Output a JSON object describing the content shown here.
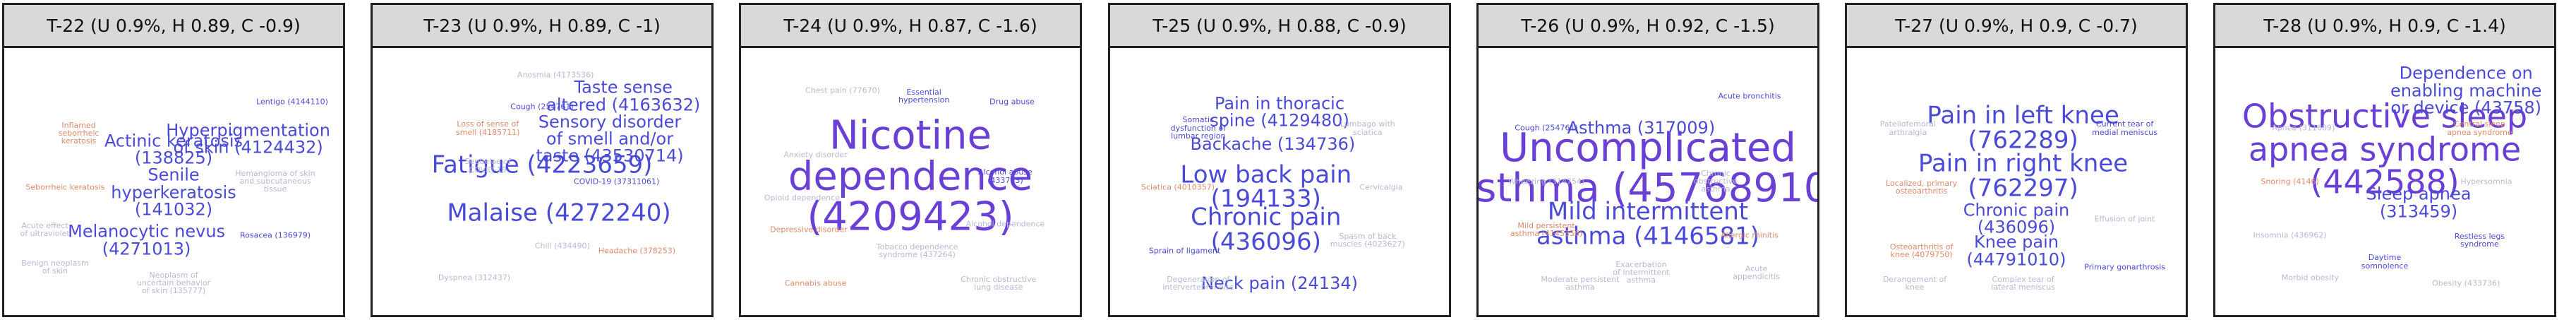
{
  "colors": {
    "hot": "#6a3fd6",
    "mid": "#4a4ad8",
    "warm": "#e08a6a",
    "faint": "#b8b8d6"
  },
  "panels": [
    {
      "title": "T-22 (U 0.9%, H 0.89, C -0.9)",
      "words": [
        {
          "text": "Actinic keratosis\n(138825)",
          "tier": "mid"
        },
        {
          "text": "Hyperpigmentation\nof skin (4124432)",
          "tier": "mid"
        },
        {
          "text": "Senile\nhyperkeratosis\n(141032)",
          "tier": "mid"
        },
        {
          "text": "Melanocytic nevus\n(4271013)",
          "tier": "mid"
        },
        {
          "text": "Inflamed\nseborrheic\nkeratosis",
          "tier": "small"
        },
        {
          "text": "Neoplasm of\nuncertain behavior\nof skin (135777)",
          "tier": "small"
        },
        {
          "text": "Rosacea (136979)",
          "tier": "small"
        },
        {
          "text": "Hemangioma of skin\nand subcutaneous\ntissue",
          "tier": "small"
        },
        {
          "text": "Seborrheic keratosis",
          "tier": "small"
        },
        {
          "text": "Benign neoplasm\nof skin",
          "tier": "small"
        },
        {
          "text": "Lentigo (4144110)",
          "tier": "small"
        },
        {
          "text": "Acute effect\nof ultraviolet",
          "tier": "small"
        }
      ]
    },
    {
      "title": "T-23 (U 0.9%, H 0.89, C -1)",
      "words": [
        {
          "text": "Fatigue (4223659)",
          "tier": "big"
        },
        {
          "text": "Malaise (4272240)",
          "tier": "big"
        },
        {
          "text": "Sensory disorder\nof smell and/or\ntaste (43530714)",
          "tier": "mid"
        },
        {
          "text": "Taste sense\naltered (4163632)",
          "tier": "mid"
        },
        {
          "text": "Loss of sense of\nsmell (4185711)",
          "tier": "small"
        },
        {
          "text": "Sequelae of\nCOVID-19",
          "tier": "small"
        },
        {
          "text": "Cough (254761)",
          "tier": "small"
        },
        {
          "text": "Chill (434490)",
          "tier": "small"
        },
        {
          "text": "Headache (378253)",
          "tier": "small"
        },
        {
          "text": "Dyspnea (312437)",
          "tier": "small"
        },
        {
          "text": "COVID-19 (37311061)",
          "tier": "small"
        },
        {
          "text": "Anosmia (4173536)",
          "tier": "small"
        }
      ]
    },
    {
      "title": "T-24 (U 0.9%, H 0.87, C -1.6)",
      "words": [
        {
          "text": "Nicotine\ndependence\n(4209423)",
          "tier": "huge"
        },
        {
          "text": "Tobacco dependence\nsyndrome (437264)",
          "tier": "small"
        },
        {
          "text": "Alcohol abuse\n(433753)",
          "tier": "small"
        },
        {
          "text": "Anxiety disorder",
          "tier": "small"
        },
        {
          "text": "Depressive disorder",
          "tier": "small"
        },
        {
          "text": "Chest pain (77670)",
          "tier": "small"
        },
        {
          "text": "Drug abuse",
          "tier": "small"
        },
        {
          "text": "Alcohol dependence",
          "tier": "small"
        },
        {
          "text": "Cannabis abuse",
          "tier": "small"
        },
        {
          "text": "Chronic obstructive\nlung disease",
          "tier": "small"
        },
        {
          "text": "Essential\nhypertension",
          "tier": "small"
        },
        {
          "text": "Opioid dependence",
          "tier": "small"
        }
      ]
    },
    {
      "title": "T-25 (U 0.9%, H 0.88, C -0.9)",
      "words": [
        {
          "text": "Low back pain\n(194133)",
          "tier": "big"
        },
        {
          "text": "Chronic pain\n(436096)",
          "tier": "big"
        },
        {
          "text": "Backache (134736)",
          "tier": "mid"
        },
        {
          "text": "Pain in thoracic\nspine (4129480)",
          "tier": "mid"
        },
        {
          "text": "Neck pain (24134)",
          "tier": "mid"
        },
        {
          "text": "Lumbago with\nsciatica",
          "tier": "small"
        },
        {
          "text": "Somatic\ndysfunction of\nlumbar region",
          "tier": "small"
        },
        {
          "text": "Cervicalgia",
          "tier": "small"
        },
        {
          "text": "Sciatica (4010357)",
          "tier": "small"
        },
        {
          "text": "Spasm of back\nmuscles (4023627)",
          "tier": "small"
        },
        {
          "text": "Sprain of ligament",
          "tier": "small"
        },
        {
          "text": "Degeneration of\nintervertebral disc",
          "tier": "small"
        }
      ]
    },
    {
      "title": "T-26 (U 0.9%, H 0.92, C -1.5)",
      "words": [
        {
          "text": "Uncomplicated\nasthma (45768910)",
          "tier": "huge"
        },
        {
          "text": "Mild intermittent\nasthma (4146581)",
          "tier": "big"
        },
        {
          "text": "Asthma (317009)",
          "tier": "mid"
        },
        {
          "text": "Exacerbation\nof intermittent\nasthma",
          "tier": "small"
        },
        {
          "text": "Mild persistent\nasthma (4145356)",
          "tier": "small"
        },
        {
          "text": "Wheezing (314754)",
          "tier": "small"
        },
        {
          "text": "Acute bronchitis",
          "tier": "small"
        },
        {
          "text": "Chronic\nobstructive\nasthma",
          "tier": "small"
        },
        {
          "text": "Allergic rhinitis",
          "tier": "small"
        },
        {
          "text": "Moderate persistent\nasthma",
          "tier": "small"
        },
        {
          "text": "Cough (254761)",
          "tier": "small"
        },
        {
          "text": "Acute\nappendicitis",
          "tier": "small"
        }
      ]
    },
    {
      "title": "T-27 (U 0.9%, H 0.9, C -0.7)",
      "words": [
        {
          "text": "Pain in left knee\n(762289)",
          "tier": "big"
        },
        {
          "text": "Pain in right knee\n(762297)",
          "tier": "big"
        },
        {
          "text": "Chronic pain\n(436096)",
          "tier": "mid"
        },
        {
          "text": "Knee pain\n(44791010)",
          "tier": "mid"
        },
        {
          "text": "Localized, primary\nosteoarthritis",
          "tier": "small"
        },
        {
          "text": "Patellofemoral\narthralgia",
          "tier": "small"
        },
        {
          "text": "Current tear of\nmedial meniscus",
          "tier": "small"
        },
        {
          "text": "Effusion of joint",
          "tier": "small"
        },
        {
          "text": "Osteoarthritis of\nknee (4079750)",
          "tier": "small"
        },
        {
          "text": "Complex tear of\nlateral meniscus",
          "tier": "small"
        },
        {
          "text": "Primary gonarthrosis",
          "tier": "small"
        },
        {
          "text": "Derangement of\nknee",
          "tier": "small"
        }
      ]
    },
    {
      "title": "T-28 (U 0.9%, H 0.9, C -1.4)",
      "words": [
        {
          "text": "Obstructive sleep\napnea syndrome\n(442588)",
          "tier": "huge2"
        },
        {
          "text": "Dependence on\nenabling machine\nor device (43758)",
          "tier": "mid"
        },
        {
          "text": "Sleep apnea\n(313459)",
          "tier": "mid"
        },
        {
          "text": "Apnea (311609)",
          "tier": "small"
        },
        {
          "text": "Snoring (4146)",
          "tier": "small"
        },
        {
          "text": "Hypersomnia",
          "tier": "small"
        },
        {
          "text": "Restless legs\nsyndrome",
          "tier": "small"
        },
        {
          "text": "Insomnia (436962)",
          "tier": "small"
        },
        {
          "text": "Central sleep\napnea syndrome",
          "tier": "small"
        },
        {
          "text": "Morbid obesity",
          "tier": "small"
        },
        {
          "text": "Daytime\nsomnolence",
          "tier": "small"
        },
        {
          "text": "Obesity (433736)",
          "tier": "small"
        }
      ]
    }
  ]
}
